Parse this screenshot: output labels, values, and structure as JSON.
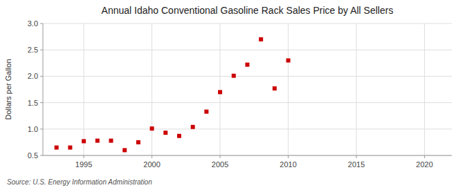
{
  "chart_data": {
    "type": "scatter",
    "title": "Annual Idaho Conventional Gasoline Rack Sales Price by All Sellers",
    "y_label": "Dollars per Gallon",
    "annotations": [
      "Source: U.S. Energy Information Administration"
    ],
    "x": [
      1993,
      1994,
      1995,
      1996,
      1997,
      1998,
      1999,
      2000,
      2001,
      2002,
      2003,
      2004,
      2005,
      2006,
      2007,
      2008,
      2009,
      2010
    ],
    "values": [
      0.65,
      0.65,
      0.77,
      0.78,
      0.78,
      0.6,
      0.75,
      1.01,
      0.93,
      0.87,
      1.04,
      1.33,
      1.7,
      2.01,
      2.22,
      2.7,
      1.77,
      2.3
    ],
    "color": "#cc0000",
    "marker": "square",
    "xlim": [
      1992,
      2022
    ],
    "ylim": [
      0.5,
      3.0
    ],
    "xticks": [
      1995,
      2000,
      2005,
      2010,
      2015,
      2020
    ],
    "yticks": [
      0.5,
      {
        "value": 1.0,
        "label": "1.0"
      },
      1.5,
      {
        "value": 2.0,
        "label": "2.0"
      },
      2.5,
      {
        "value": 3.0,
        "label": "3.0"
      }
    ],
    "grid": true
  }
}
